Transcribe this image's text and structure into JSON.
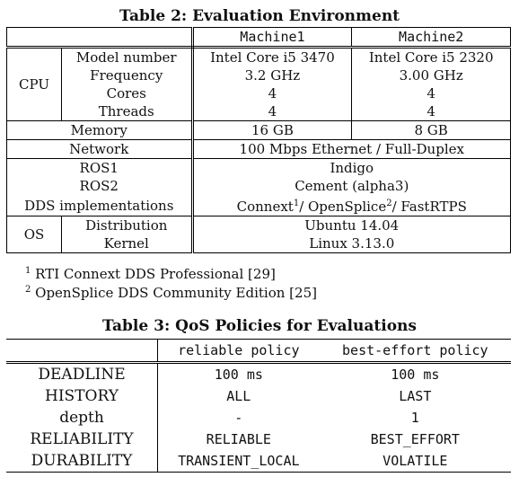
{
  "table2": {
    "caption": "Table 2: Evaluation Environment",
    "headers": [
      "Machine1",
      "Machine2"
    ],
    "cpu_label": "CPU",
    "cpu_rows": [
      {
        "label": "Model number",
        "m1": "Intel Core i5 3470",
        "m2": "Intel Core i5 2320"
      },
      {
        "label": "Frequency",
        "m1": "3.2 GHz",
        "m2": "3.00 GHz"
      },
      {
        "label": "Cores",
        "m1": "4",
        "m2": "4"
      },
      {
        "label": "Threads",
        "m1": "4",
        "m2": "4"
      }
    ],
    "memory": {
      "label": "Memory",
      "m1": "16 GB",
      "m2": "8 GB"
    },
    "network": {
      "label": "Network",
      "value": "100 Mbps Ethernet / Full-Duplex"
    },
    "ros1": {
      "label": "ROS1",
      "value": "Indigo"
    },
    "ros2": {
      "label": "ROS2",
      "value": "Cement (alpha3)"
    },
    "dds": {
      "label": "DDS implementations",
      "v1": "Connext",
      "v2": "/ OpenSplice",
      "v3": "/ FastRTPS"
    },
    "os_label": "OS",
    "os_rows": [
      {
        "label": "Distribution",
        "value": "Ubuntu 14.04"
      },
      {
        "label": "Kernel",
        "value": "Linux 3.13.0"
      }
    ],
    "footnotes": [
      {
        "mark": "1",
        "text": "RTI Connext DDS Professional [29]"
      },
      {
        "mark": "2",
        "text": "OpenSplice DDS Community Edition [25]"
      }
    ]
  },
  "table3": {
    "caption": "Table 3: QoS Policies for Evaluations",
    "headers": [
      "reliable policy",
      "best-effort policy"
    ],
    "rows": [
      {
        "label": "DEADLINE",
        "reliable": "100 ms",
        "best_effort": "100 ms"
      },
      {
        "label": "HISTORY",
        "reliable": "ALL",
        "best_effort": "LAST"
      },
      {
        "label": "depth",
        "reliable": "-",
        "best_effort": "1"
      },
      {
        "label": "RELIABILITY",
        "reliable": "RELIABLE",
        "best_effort": "BEST_EFFORT"
      },
      {
        "label": "DURABILITY",
        "reliable": "TRANSIENT_LOCAL",
        "best_effort": "VOLATILE"
      }
    ]
  }
}
